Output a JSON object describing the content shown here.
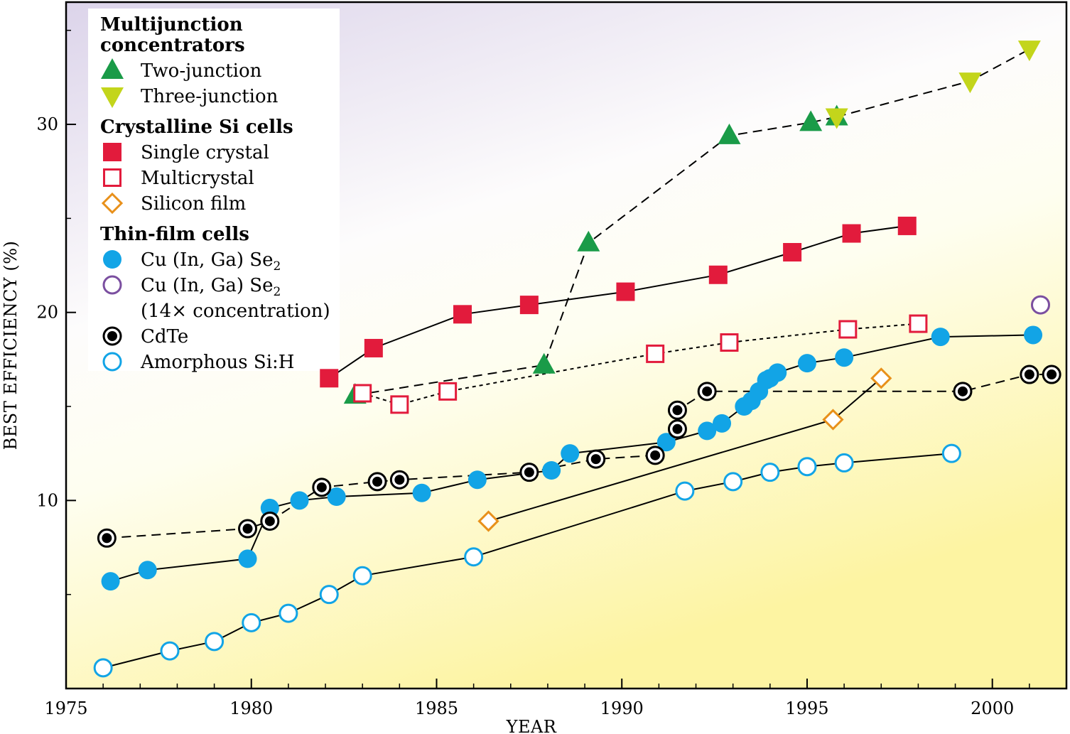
{
  "chart_data": {
    "type": "scatter",
    "title": "",
    "xlabel": "YEAR",
    "ylabel": "BEST EFFICIENCY (%)",
    "xlim": [
      1975,
      2002
    ],
    "ylim": [
      0,
      36.5
    ],
    "x_ticks": [
      1975,
      1980,
      1985,
      1990,
      1995,
      2000
    ],
    "x_tick_labels": [
      "1975",
      "1980",
      "1985",
      "1990",
      "1995",
      "2000"
    ],
    "y_ticks": [
      10,
      20,
      30
    ],
    "y_tick_labels": [
      "10",
      "20",
      "30"
    ],
    "legend_position": "top-left",
    "legend_groups": [
      {
        "heading_lines": [
          "Multijunction",
          "concentrators"
        ],
        "entries": [
          {
            "label": "Two-junction",
            "marker": "triangle-up",
            "color": "#1a9b48"
          },
          {
            "label": "Three-junction",
            "marker": "triangle-down",
            "color": "#c3d51b"
          }
        ]
      },
      {
        "heading_lines": [
          "Crystalline Si cells"
        ],
        "entries": [
          {
            "label": "Single crystal",
            "marker": "square-filled",
            "color": "#e21b3c"
          },
          {
            "label": "Multicrystal",
            "marker": "square-open",
            "color": "#e21b3c"
          },
          {
            "label": "Silicon film",
            "marker": "diamond-open",
            "color": "#e8901a"
          }
        ]
      },
      {
        "heading_lines": [
          "Thin-film cells"
        ],
        "entries": [
          {
            "label": "Cu (In, Ga) Se",
            "subscript": "2",
            "marker": "circle-filled",
            "color": "#12a4e6"
          },
          {
            "label": "Cu (In, Ga) Se",
            "subscript": "2",
            "label_line2": "(14× concentration)",
            "marker": "circle-open",
            "color": "#7b4fa0"
          },
          {
            "label": "CdTe",
            "marker": "circle-dot",
            "color": "#000000"
          },
          {
            "label": "Amorphous Si:H",
            "marker": "circle-open",
            "color": "#12a4e6"
          }
        ]
      }
    ],
    "series": [
      {
        "name": "Two-junction",
        "marker": "triangle-up",
        "color": "#1a9b48",
        "line": "dashed",
        "x": [
          1982.8,
          1987.9,
          1989.1,
          1992.9,
          1995.1,
          1995.8
        ],
        "y": [
          15.6,
          17.2,
          23.7,
          29.4,
          30.1,
          30.4
        ]
      },
      {
        "name": "Three-junction",
        "marker": "triangle-down",
        "color": "#c3d51b",
        "line": "dashed",
        "x": [
          1995.8,
          1999.4,
          2001.0
        ],
        "y": [
          30.4,
          32.3,
          34.0
        ]
      },
      {
        "name": "Single crystal",
        "marker": "square-filled",
        "color": "#e21b3c",
        "line": "solid",
        "x": [
          1982.1,
          1983.3,
          1985.7,
          1987.5,
          1990.1,
          1992.6,
          1994.6,
          1996.2,
          1997.7
        ],
        "y": [
          16.5,
          18.1,
          19.9,
          20.4,
          21.1,
          22.0,
          23.2,
          24.2,
          24.6
        ]
      },
      {
        "name": "Multicrystal",
        "marker": "square-open",
        "color": "#e21b3c",
        "line": "dotted",
        "x": [
          1983.0,
          1984.0,
          1985.3,
          1990.9,
          1992.9,
          1996.1,
          1998.0
        ],
        "y": [
          15.7,
          15.1,
          15.8,
          17.8,
          18.4,
          19.1,
          19.4
        ]
      },
      {
        "name": "Silicon film",
        "marker": "diamond-open",
        "color": "#e8901a",
        "line": "solid",
        "x": [
          1986.4,
          1995.7,
          1997.0
        ],
        "y": [
          8.9,
          14.3,
          16.5
        ]
      },
      {
        "name": "Cu (In, Ga) Se2",
        "marker": "circle-filled",
        "color": "#12a4e6",
        "line": "solid",
        "x": [
          1976.2,
          1977.2,
          1979.9,
          1980.5,
          1981.3,
          1982.3,
          1984.6,
          1986.1,
          1988.1,
          1988.6,
          1991.2,
          1992.3,
          1992.7,
          1993.3,
          1993.5,
          1993.7,
          1993.9,
          1994.0,
          1994.2,
          1995.0,
          1996.0,
          1998.6,
          2001.1
        ],
        "y": [
          5.7,
          6.3,
          6.9,
          9.6,
          10.0,
          10.2,
          10.4,
          11.1,
          11.6,
          12.5,
          13.1,
          13.7,
          14.1,
          15.0,
          15.3,
          15.8,
          16.4,
          16.5,
          16.8,
          17.3,
          17.6,
          18.7,
          18.8
        ]
      },
      {
        "name": "Cu (In, Ga) Se2 (14× concentration)",
        "marker": "circle-open",
        "color": "#7b4fa0",
        "line": "none",
        "x": [
          2001.3
        ],
        "y": [
          20.4
        ]
      },
      {
        "name": "CdTe",
        "marker": "circle-dot",
        "color": "#000000",
        "line": "dashed",
        "x": [
          1976.1,
          1979.9,
          1980.5,
          1981.9,
          1983.4,
          1984.0,
          1987.5,
          1989.3,
          1990.9,
          1991.5,
          1991.5,
          1992.3,
          1999.2,
          2001.0,
          2001.6
        ],
        "y": [
          8.0,
          8.5,
          8.9,
          10.7,
          11.0,
          11.1,
          11.5,
          12.2,
          12.4,
          13.8,
          14.8,
          15.8,
          15.8,
          16.7,
          16.7
        ]
      },
      {
        "name": "Amorphous Si:H",
        "marker": "circle-open",
        "color": "#12a4e6",
        "line": "solid",
        "x": [
          1976.0,
          1977.8,
          1979.0,
          1980.0,
          1981.0,
          1982.1,
          1983.0,
          1986.0,
          1991.7,
          1993.0,
          1994.0,
          1995.0,
          1996.0,
          1998.9
        ],
        "y": [
          1.1,
          2.0,
          2.5,
          3.5,
          4.0,
          5.0,
          6.0,
          7.0,
          10.5,
          11.0,
          11.5,
          11.8,
          12.0,
          12.5
        ]
      }
    ]
  }
}
